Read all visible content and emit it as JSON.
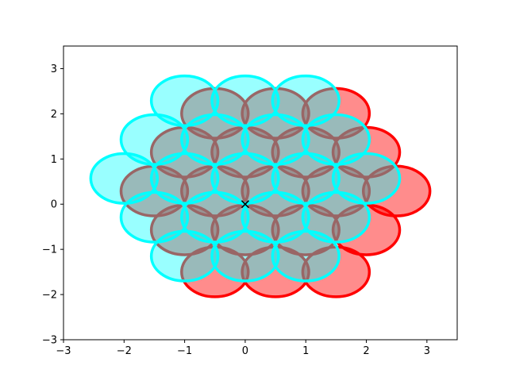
{
  "chart_data": {
    "type": "scatter",
    "title": "",
    "xlabel": "",
    "ylabel": "",
    "xlim": [
      -3,
      3.5
    ],
    "ylim": [
      -3,
      3.5
    ],
    "xticks": [
      -3,
      -2,
      -1,
      0,
      1,
      2,
      3
    ],
    "yticks": [
      -3,
      -2,
      -1,
      0,
      1,
      2,
      3
    ],
    "xtick_labels": [
      "−3",
      "−2",
      "−1",
      "0",
      "1",
      "2",
      "3"
    ],
    "ytick_labels": [
      "−3",
      "−2",
      "−1",
      "0",
      "1",
      "2",
      "3"
    ],
    "grid": false,
    "circle_radius_x": 0.55,
    "circle_radius_y": 0.55,
    "series": [
      {
        "face_color": "#ff0000",
        "edge_color": "#ff0000",
        "face_alpha": 0.45,
        "centers": [
          [
            -0.5,
            -1.5
          ],
          [
            0.5,
            -1.5
          ],
          [
            1.5,
            -1.5
          ],
          [
            -1.0,
            -0.57
          ],
          [
            0.0,
            -0.57
          ],
          [
            1.0,
            -0.57
          ],
          [
            2.0,
            -0.57
          ],
          [
            -1.5,
            0.29
          ],
          [
            -0.5,
            0.29
          ],
          [
            0.5,
            0.29
          ],
          [
            1.5,
            0.29
          ],
          [
            2.5,
            0.29
          ],
          [
            -1.0,
            1.15
          ],
          [
            0.0,
            1.15
          ],
          [
            1.0,
            1.15
          ],
          [
            2.0,
            1.15
          ],
          [
            -0.5,
            2.01
          ],
          [
            0.5,
            2.01
          ],
          [
            1.5,
            2.01
          ]
        ]
      },
      {
        "face_color": "#00ffff",
        "edge_color": "#00ffff",
        "face_alpha": 0.4,
        "centers": [
          [
            -1.0,
            -1.15
          ],
          [
            0.0,
            -1.15
          ],
          [
            1.0,
            -1.15
          ],
          [
            -1.5,
            -0.29
          ],
          [
            -0.5,
            -0.29
          ],
          [
            0.5,
            -0.29
          ],
          [
            1.5,
            -0.29
          ],
          [
            -2.0,
            0.57
          ],
          [
            -1.0,
            0.57
          ],
          [
            0.0,
            0.57
          ],
          [
            1.0,
            0.57
          ],
          [
            2.0,
            0.57
          ],
          [
            -1.5,
            1.43
          ],
          [
            -0.5,
            1.43
          ],
          [
            0.5,
            1.43
          ],
          [
            1.5,
            1.43
          ],
          [
            -1.0,
            2.29
          ],
          [
            0.0,
            2.29
          ],
          [
            1.0,
            2.29
          ]
        ]
      }
    ],
    "marker": {
      "x": 0,
      "y": 0,
      "symbol": "x",
      "color": "#000000"
    }
  }
}
